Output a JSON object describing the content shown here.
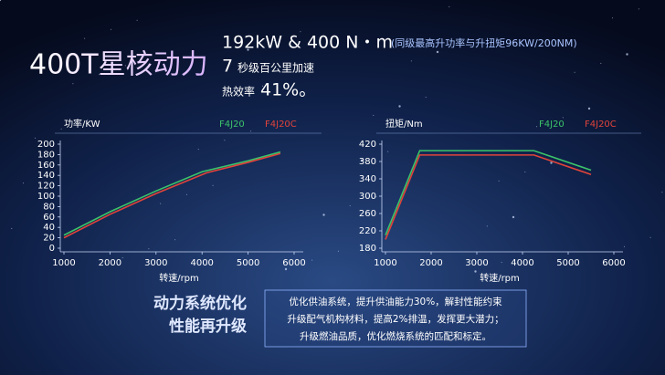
{
  "header": {
    "title": "400T星核动力",
    "line1_main": "192kW & 400 N・m",
    "line1_note": "(同级最高升功率与升扭矩96KW/200NM)",
    "line2_num": "7",
    "line2_text": "秒级百公里加速",
    "line3_text": "热效率",
    "line3_num": "41%。"
  },
  "chart_data": [
    {
      "type": "line",
      "y_label": "功率/KW",
      "x_label": "转速/rpm",
      "xlim": [
        1000,
        6000
      ],
      "xticks": [
        1000,
        2000,
        3000,
        4000,
        5000,
        6000
      ],
      "ylim": [
        0,
        200
      ],
      "yticks": [
        0,
        20,
        40,
        60,
        80,
        100,
        120,
        140,
        160,
        180,
        200
      ],
      "series": [
        {
          "name": "F4J20",
          "color": "#3cc46a",
          "x": [
            1000,
            2000,
            3000,
            4000,
            5000,
            5700
          ],
          "values": [
            25,
            70,
            110,
            147,
            168,
            185
          ]
        },
        {
          "name": "F4J20C",
          "color": "#e0443a",
          "x": [
            1000,
            2000,
            3000,
            4100,
            5000,
            5700
          ],
          "values": [
            20,
            65,
            105,
            145,
            165,
            182
          ]
        }
      ]
    },
    {
      "type": "line",
      "y_label": "扭矩/Nm",
      "x_label": "转速/rpm",
      "xlim": [
        1000,
        6000
      ],
      "xticks": [
        1000,
        2000,
        3000,
        4000,
        5000,
        6000
      ],
      "ylim": [
        180,
        420
      ],
      "yticks": [
        180,
        220,
        260,
        300,
        340,
        380,
        420
      ],
      "series": [
        {
          "name": "F4J20",
          "color": "#3cc46a",
          "x": [
            1000,
            1750,
            4250,
            5500
          ],
          "values": [
            210,
            405,
            405,
            360
          ]
        },
        {
          "name": "F4J20C",
          "color": "#e0443a",
          "x": [
            1000,
            1750,
            4250,
            5500
          ],
          "values": [
            200,
            395,
            395,
            350
          ]
        }
      ]
    }
  ],
  "footer": {
    "headline1": "动力系统优化",
    "headline2": "性能再升级",
    "desc1": "优化供油系统，提升供油能力30%，解封性能约束",
    "desc2": "升级配气机构材料，提高2%排温，发挥更大潜力；",
    "desc3": "升级燃油品质，优化燃烧系统的匹配和标定。"
  }
}
